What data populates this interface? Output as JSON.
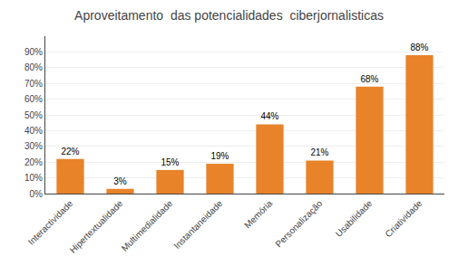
{
  "chart_data": {
    "type": "bar",
    "title": "Aproveitamento  das potencialidades  ciberjornalisticas",
    "categories": [
      "Interactividade",
      "Hipertextualidade",
      "Multimedialidade",
      "Instantaneidade",
      "Memória",
      "Personalização",
      "Usabilidade",
      "Criatividade"
    ],
    "values": [
      22,
      3,
      15,
      19,
      44,
      21,
      68,
      88
    ],
    "value_labels": [
      "22%",
      "3%",
      "15%",
      "19%",
      "44%",
      "21%",
      "68%",
      "88%"
    ],
    "color": "#E8832A",
    "ylim": [
      0,
      100
    ],
    "yticks": [
      {
        "value": 0,
        "label": "0%"
      },
      {
        "value": 10,
        "label": "10%"
      },
      {
        "value": 20,
        "label": "20%"
      },
      {
        "value": 30,
        "label": "30%"
      },
      {
        "value": 40,
        "label": "40%"
      },
      {
        "value": 50,
        "label": "50%"
      },
      {
        "value": 60,
        "label": "60%"
      },
      {
        "value": 70,
        "label": "70%"
      },
      {
        "value": 80,
        "label": "80%"
      },
      {
        "value": 90,
        "label": "90%"
      }
    ],
    "grid": true,
    "data_labels": true
  }
}
